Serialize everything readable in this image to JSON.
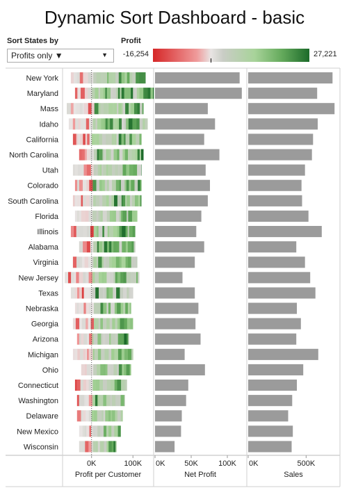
{
  "dashboard": {
    "title": "Dynamic Sort Dashboard - basic"
  },
  "controls": {
    "sort_label": "Sort States by",
    "sort_value": "Profits only ▼",
    "sort_arrow": "▼"
  },
  "legend": {
    "title": "Profit",
    "min": "-16,254",
    "max": "27,221",
    "colors": [
      "#d62728",
      "#ef9a9a",
      "#e8e4e3",
      "#c9cdc5",
      "#a8d39a",
      "#66ab5d",
      "#1c6b2a"
    ]
  },
  "chart_data": [
    {
      "type": "heatmap",
      "xlabel": "Profit per Customer",
      "xticks": [
        "0K",
        "100K"
      ],
      "xtick_values": [
        0,
        100000
      ],
      "xlim": [
        -70000,
        150000
      ],
      "color_range": [
        -16254,
        27221
      ],
      "categories": [
        "New York",
        "Maryland",
        "Mass",
        "Idaho",
        "California",
        "North Carolina",
        "Utah",
        "Colorado",
        "South Carolina",
        "Florida",
        "Illinois",
        "Alabama",
        "Virginia",
        "New Jersey",
        "Texas",
        "Nebraska",
        "Georgia",
        "Arizona",
        "Michigan",
        "Ohio",
        "Connecticut",
        "Washington",
        "Delaware",
        "New Mexico",
        "Wisconsin"
      ],
      "extent": [
        [
          -50000,
          130000
        ],
        [
          -40000,
          150000
        ],
        [
          -60000,
          125000
        ],
        [
          -55000,
          135000
        ],
        [
          -45000,
          120000
        ],
        [
          -30000,
          125000
        ],
        [
          -45000,
          120000
        ],
        [
          -40000,
          120000
        ],
        [
          -45000,
          120000
        ],
        [
          -40000,
          110000
        ],
        [
          -50000,
          105000
        ],
        [
          -30000,
          105000
        ],
        [
          -45000,
          110000
        ],
        [
          -65000,
          115000
        ],
        [
          -50000,
          100000
        ],
        [
          -40000,
          95000
        ],
        [
          -45000,
          100000
        ],
        [
          -35000,
          90000
        ],
        [
          -45000,
          100000
        ],
        [
          -25000,
          95000
        ],
        [
          -40000,
          85000
        ],
        [
          -35000,
          80000
        ],
        [
          -35000,
          75000
        ],
        [
          -30000,
          70000
        ],
        [
          -30000,
          60000
        ]
      ]
    },
    {
      "type": "bar",
      "xlabel": "Net Profit",
      "xticks": [
        "0K",
        "50K",
        "100K"
      ],
      "xtick_values": [
        0,
        50000,
        100000
      ],
      "xlim": [
        0,
        125000
      ],
      "categories": [
        "New York",
        "Maryland",
        "Mass",
        "Idaho",
        "California",
        "North Carolina",
        "Utah",
        "Colorado",
        "South Carolina",
        "Florida",
        "Illinois",
        "Alabama",
        "Virginia",
        "New Jersey",
        "Texas",
        "Nebraska",
        "Georgia",
        "Arizona",
        "Michigan",
        "Ohio",
        "Connecticut",
        "Washington",
        "Delaware",
        "New Mexico",
        "Wisconsin"
      ],
      "values": [
        117000,
        120000,
        73000,
        83000,
        68000,
        89000,
        70000,
        76000,
        73000,
        64000,
        57000,
        68000,
        55000,
        38000,
        55000,
        60000,
        56000,
        63000,
        41000,
        69000,
        46000,
        43000,
        37000,
        36000,
        27000
      ]
    },
    {
      "type": "bar",
      "xlabel": "Sales",
      "xticks": [
        "0K",
        "500K"
      ],
      "xtick_values": [
        0,
        500000
      ],
      "xlim": [
        0,
        780000
      ],
      "categories": [
        "New York",
        "Maryland",
        "Mass",
        "Idaho",
        "California",
        "North Carolina",
        "Utah",
        "Colorado",
        "South Carolina",
        "Florida",
        "Illinois",
        "Alabama",
        "Virginia",
        "New Jersey",
        "Texas",
        "Nebraska",
        "Georgia",
        "Arizona",
        "Michigan",
        "Ohio",
        "Connecticut",
        "Washington",
        "Delaware",
        "New Mexico",
        "Wisconsin"
      ],
      "values": [
        728000,
        595000,
        745000,
        600000,
        560000,
        550000,
        490000,
        460000,
        465000,
        520000,
        635000,
        415000,
        490000,
        535000,
        580000,
        420000,
        455000,
        415000,
        605000,
        475000,
        420000,
        380000,
        345000,
        385000,
        375000
      ]
    }
  ]
}
